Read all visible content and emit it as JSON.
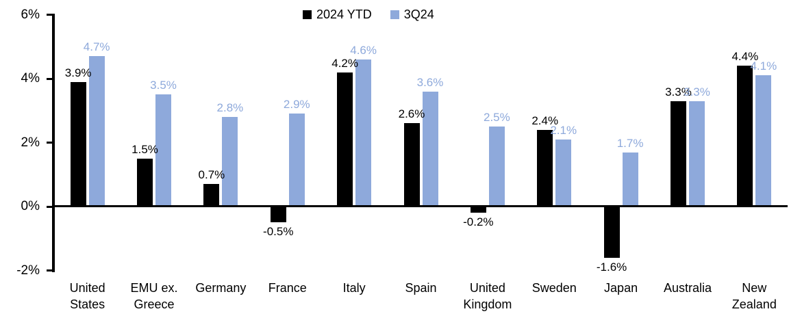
{
  "chart_data": {
    "type": "bar",
    "title": "",
    "categories": [
      "United States",
      "EMU ex. Greece",
      "Germany",
      "France",
      "Italy",
      "Spain",
      "United Kingdom",
      "Sweden",
      "Japan",
      "Australia",
      "New Zealand"
    ],
    "series": [
      {
        "name": "2024 YTD",
        "color": "#000000",
        "values": [
          3.9,
          1.5,
          0.7,
          -0.5,
          4.2,
          2.6,
          -0.2,
          2.4,
          -1.6,
          3.3,
          4.4
        ]
      },
      {
        "name": "3Q24",
        "color": "#8EA9DB",
        "values": [
          4.7,
          3.5,
          2.8,
          2.9,
          4.6,
          3.6,
          2.5,
          2.1,
          1.7,
          3.3,
          4.1
        ]
      }
    ],
    "xlabel": "",
    "ylabel": "",
    "ylim": [
      -2,
      6
    ],
    "yticks": [
      -2,
      0,
      2,
      4,
      6
    ],
    "ytick_labels": [
      "-2%",
      "0%",
      "2%",
      "4%",
      "6%"
    ],
    "data_label_format": "one-decimal-percent",
    "legend_position": "top-center",
    "grid": false,
    "background": "#ffffff"
  }
}
